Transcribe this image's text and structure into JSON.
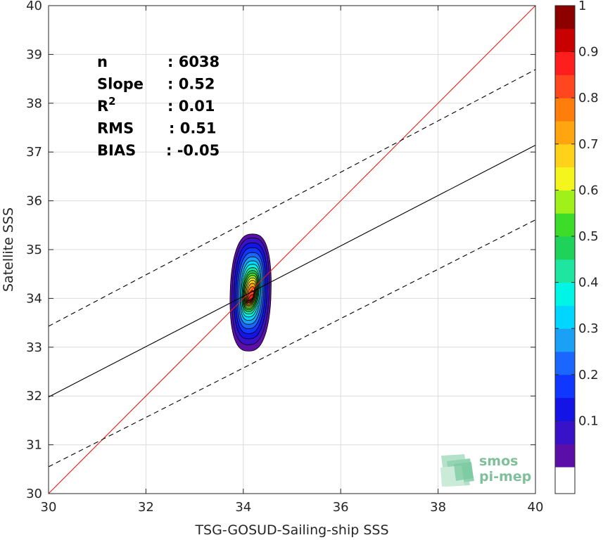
{
  "chart_data": {
    "type": "contour",
    "xlabel": "TSG-GOSUD-Sailing-ship SSS",
    "ylabel": "Satellite SSS",
    "xlim": [
      30,
      40
    ],
    "ylim": [
      30,
      40
    ],
    "x_ticks": [
      30,
      32,
      34,
      36,
      38,
      40
    ],
    "y_ticks": [
      30,
      31,
      32,
      33,
      34,
      35,
      36,
      37,
      38,
      39,
      40
    ],
    "grid": true,
    "stats": [
      {
        "label": "n",
        "value": ": 6038"
      },
      {
        "label": "Slope",
        "value": ": 0.52"
      },
      {
        "label": "R",
        "sup": "2",
        "value": ": 0.01"
      },
      {
        "label": "RMS",
        "value": ": 0.51"
      },
      {
        "label": "BIAS",
        "value": ": -0.05"
      }
    ],
    "lines": [
      {
        "kind": "identity",
        "color": "#e0201b",
        "dash": "solid",
        "points": [
          [
            30,
            30
          ],
          [
            40,
            40
          ]
        ]
      },
      {
        "kind": "regression",
        "color": "#000000",
        "dash": "solid",
        "points": [
          [
            30,
            31.98
          ],
          [
            40,
            37.14
          ]
        ]
      },
      {
        "kind": "regression-upper",
        "color": "#000000",
        "dash": "dashed",
        "points": [
          [
            30,
            33.43
          ],
          [
            40,
            38.69
          ]
        ]
      },
      {
        "kind": "regression-lower",
        "color": "#000000",
        "dash": "dashed",
        "points": [
          [
            30,
            30.55
          ],
          [
            40,
            35.61
          ]
        ]
      }
    ],
    "density": {
      "center": [
        34.15,
        34.02
      ],
      "levels": [
        0.05,
        0.1,
        0.15,
        0.2,
        0.25,
        0.3,
        0.35,
        0.4,
        0.45,
        0.5,
        0.55,
        0.6,
        0.65,
        0.7,
        0.75,
        0.8,
        0.85,
        0.9,
        0.95
      ],
      "colors": [
        "#5b0fa8",
        "#3712c8",
        "#1414e6",
        "#0f37ff",
        "#1a66ff",
        "#1aa0f5",
        "#00d6ff",
        "#00f5e6",
        "#1ee6a0",
        "#1ed25a",
        "#3cdc28",
        "#a0f01a",
        "#f5f51e",
        "#ffd21a",
        "#ffa50f",
        "#ff7d0a",
        "#ff461e",
        "#ff1e1e",
        "#c80000"
      ],
      "x_half_widths": [
        0.42,
        0.38,
        0.34,
        0.3,
        0.27,
        0.24,
        0.21,
        0.19,
        0.17,
        0.155,
        0.14,
        0.125,
        0.11,
        0.095,
        0.08,
        0.065,
        0.05,
        0.035,
        0.02
      ],
      "y_top": [
        35.32,
        35.24,
        35.14,
        35.04,
        34.94,
        34.85,
        34.77,
        34.7,
        34.63,
        34.57,
        34.52,
        34.47,
        34.42,
        34.37,
        34.31,
        34.24,
        34.16,
        34.08,
        34.0
      ],
      "y_bottom": [
        32.92,
        33.05,
        33.17,
        33.28,
        33.38,
        33.47,
        33.55,
        33.62,
        33.68,
        33.73,
        33.77,
        33.8,
        33.83,
        33.85,
        33.87,
        33.89,
        33.91,
        33.93,
        33.95
      ]
    },
    "colorbar": {
      "range": [
        0,
        1
      ],
      "tick_labels": [
        "0.1",
        "0.2",
        "0.3",
        "0.4",
        "0.5",
        "0.6",
        "0.7",
        "0.8",
        "0.9",
        "1"
      ],
      "tick_values": [
        0.1,
        0.2,
        0.3,
        0.4,
        0.5,
        0.6,
        0.7,
        0.8,
        0.9,
        1.0
      ],
      "bands": [
        "#ffffff",
        "#5b0fa8",
        "#3712c8",
        "#1414e6",
        "#0f37ff",
        "#1a66ff",
        "#1aa0f5",
        "#00d6ff",
        "#00f5e6",
        "#1ee6a0",
        "#1ed25a",
        "#3cdc28",
        "#a0f01a",
        "#f5f51e",
        "#ffd21a",
        "#ffa50f",
        "#ff7d0a",
        "#ff461e",
        "#ff1e1e",
        "#c80000",
        "#8c0000"
      ]
    }
  },
  "logo": {
    "line1": "smos",
    "line2": "pi-mep"
  }
}
